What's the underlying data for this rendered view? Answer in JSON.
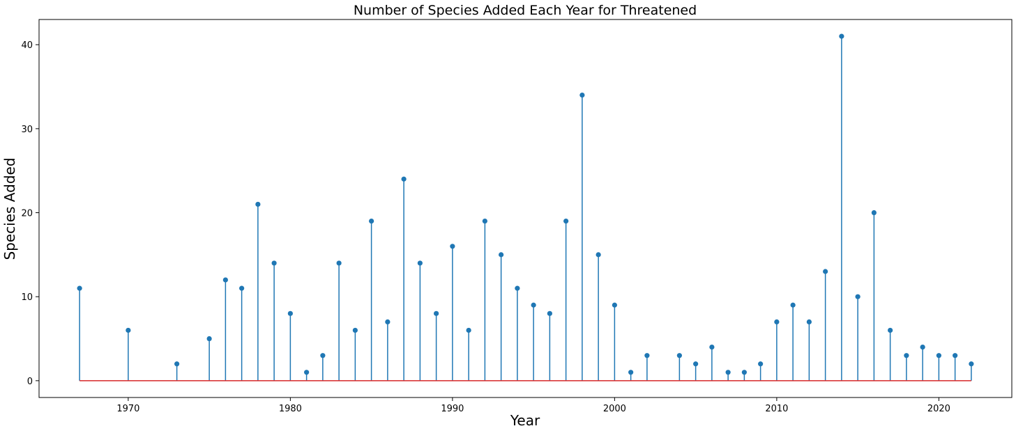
{
  "chart_data": {
    "type": "stem",
    "title": "Number of Species Added Each Year for Threatened",
    "xlabel": "Year",
    "ylabel": "Species Added",
    "xlim": [
      1964.5,
      2024.5
    ],
    "ylim": [
      -2,
      43
    ],
    "xticks": [
      1970,
      1980,
      1990,
      2000,
      2010,
      2020
    ],
    "yticks": [
      0,
      10,
      20,
      30,
      40
    ],
    "grid": false,
    "colors": {
      "stem": "#1f77b4",
      "baseline": "#d62728"
    },
    "series": [
      {
        "x": [
          1967,
          1970,
          1973,
          1975,
          1976,
          1977,
          1978,
          1979,
          1980,
          1981,
          1982,
          1983,
          1984,
          1985,
          1986,
          1987,
          1988,
          1989,
          1990,
          1991,
          1992,
          1993,
          1994,
          1995,
          1996,
          1997,
          1998,
          1999,
          2000,
          2001,
          2002,
          2004,
          2005,
          2006,
          2007,
          2008,
          2009,
          2010,
          2011,
          2012,
          2013,
          2014,
          2015,
          2016,
          2017,
          2018,
          2019,
          2020,
          2021,
          2022
        ],
        "values": [
          11,
          6,
          2,
          5,
          12,
          11,
          21,
          14,
          8,
          1,
          3,
          14,
          6,
          19,
          7,
          24,
          14,
          8,
          16,
          6,
          19,
          15,
          11,
          9,
          8,
          19,
          34,
          15,
          9,
          1,
          3,
          3,
          2,
          4,
          1,
          1,
          2,
          7,
          9,
          7,
          13,
          41,
          10,
          20,
          6,
          3,
          4,
          3,
          3,
          2
        ]
      }
    ]
  }
}
